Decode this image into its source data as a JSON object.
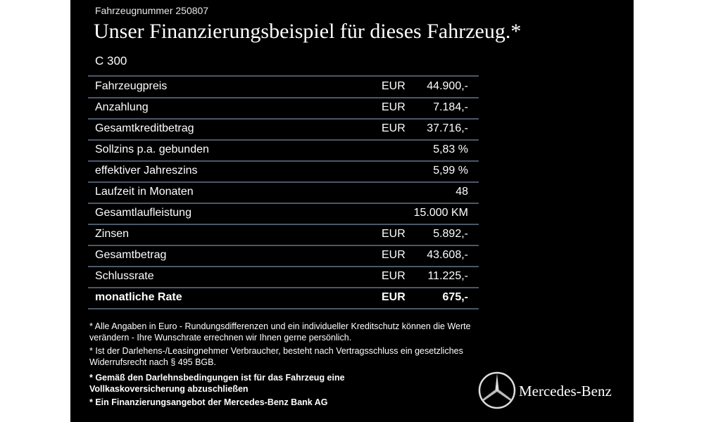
{
  "header": {
    "vehicle_number": "Fahrzeugnummer 250807",
    "title": "Unser Finanzierungsbeispiel für dieses Fahrzeug.*",
    "model": "C 300"
  },
  "table": {
    "rows": [
      {
        "label": "Fahrzeugpreis",
        "currency": "EUR",
        "value": "44.900,-"
      },
      {
        "label": "Anzahlung",
        "currency": "EUR",
        "value": "7.184,-"
      },
      {
        "label": "Gesamtkreditbetrag",
        "currency": "EUR",
        "value": "37.716,-"
      },
      {
        "label": "Sollzins p.a. gebunden",
        "value": "5,83 %"
      },
      {
        "label": "effektiver Jahreszins",
        "value": "5,99 %"
      },
      {
        "label": "Laufzeit in Monaten",
        "value": "48"
      },
      {
        "label": "Gesamtlaufleistung",
        "value": "15.000 KM"
      },
      {
        "label": "Zinsen",
        "currency": "EUR",
        "value": "5.892,-"
      },
      {
        "label": "Gesamtbetrag",
        "currency": "EUR",
        "value": "43.608,-"
      },
      {
        "label": "Schlussrate",
        "currency": "EUR",
        "value": "11.225,-"
      },
      {
        "label": "monatliche Rate",
        "currency": "EUR",
        "value": "675,-"
      }
    ]
  },
  "notes": [
    "* Alle Angaben in Euro - Rundungsdifferenzen und ein individueller Kreditschutz können die Werte verändern - Ihre Wunschrate errechnen wir Ihnen gerne persönlich.",
    "* Ist der Darlehens-/Leasingnehmer Verbraucher, besteht nach Vertragsschluss ein gesetzliches Widerrufsrecht nach § 495 BGB.",
    "* Gemäß den Darlehnsbedingungen ist für das Fahrzeug eine Vollkaskoversicherung abzuschließen",
    "* Ein Finanzierungsangebot der Mercedes-Benz Bank AG"
  ],
  "brand": {
    "name": "Mercedes-Benz"
  }
}
